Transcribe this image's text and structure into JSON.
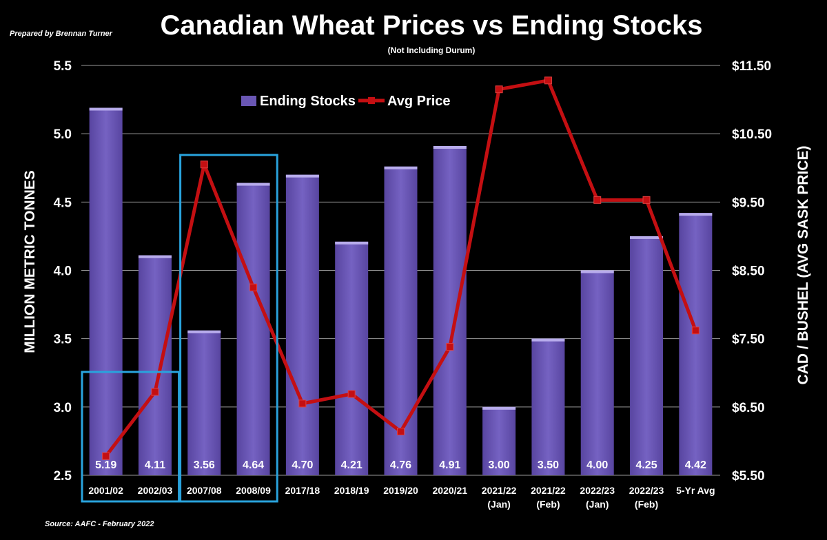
{
  "credit": "Prepared by Brennan Turner",
  "source": "Source: AAFC -  February 2022",
  "chart_data": {
    "type": "bar",
    "title": "Canadian Wheat Prices vs Ending Stocks",
    "subtitle": "(Not Including Durum)",
    "ylabel": "MILLION METRIC TONNES",
    "y2label": "CAD / BUSHEL (AVG SASK PRICE)",
    "ylim": [
      2.5,
      5.5
    ],
    "y2lim": [
      5.5,
      11.5
    ],
    "yticks": [
      "2.5",
      "3.0",
      "3.5",
      "4.0",
      "4.5",
      "5.0",
      "5.5"
    ],
    "y2ticks": [
      "$5.50",
      "$6.50",
      "$7.50",
      "$8.50",
      "$9.50",
      "$10.50",
      "$11.50"
    ],
    "categories": [
      [
        "2001/02"
      ],
      [
        "2002/03"
      ],
      [
        "2007/08"
      ],
      [
        "2008/09"
      ],
      [
        "2017/18"
      ],
      [
        "2018/19"
      ],
      [
        "2019/20"
      ],
      [
        "2020/21"
      ],
      [
        "2021/22",
        "(Jan)"
      ],
      [
        "2021/22",
        "(Feb)"
      ],
      [
        "2022/23",
        "(Jan)"
      ],
      [
        "2022/23",
        "(Feb)"
      ],
      [
        "5-Yr Avg"
      ]
    ],
    "legend": {
      "placement": "top-center"
    },
    "series": [
      {
        "name": "Ending Stocks",
        "kind": "bar",
        "color": "#6a57b4",
        "values": [
          5.19,
          4.11,
          3.56,
          4.64,
          4.7,
          4.21,
          4.76,
          4.91,
          3.0,
          3.5,
          4.0,
          4.25,
          4.42
        ],
        "labels": [
          "5.19",
          "4.11",
          "3.56",
          "4.64",
          "4.70",
          "4.21",
          "4.76",
          "4.91",
          "3.00",
          "3.50",
          "4.00",
          "4.25",
          "4.42"
        ]
      },
      {
        "name": "Avg Price",
        "kind": "line",
        "axis": "right",
        "color": "#c40f12",
        "values": [
          5.78,
          6.72,
          10.05,
          8.25,
          6.55,
          6.69,
          6.14,
          7.38,
          11.15,
          11.28,
          9.53,
          9.53,
          7.62
        ]
      }
    ],
    "highlight_boxes": [
      {
        "from": 0,
        "to": 1,
        "color": "#29a3dd"
      },
      {
        "from": 2,
        "to": 3,
        "color": "#29a3dd"
      }
    ]
  }
}
